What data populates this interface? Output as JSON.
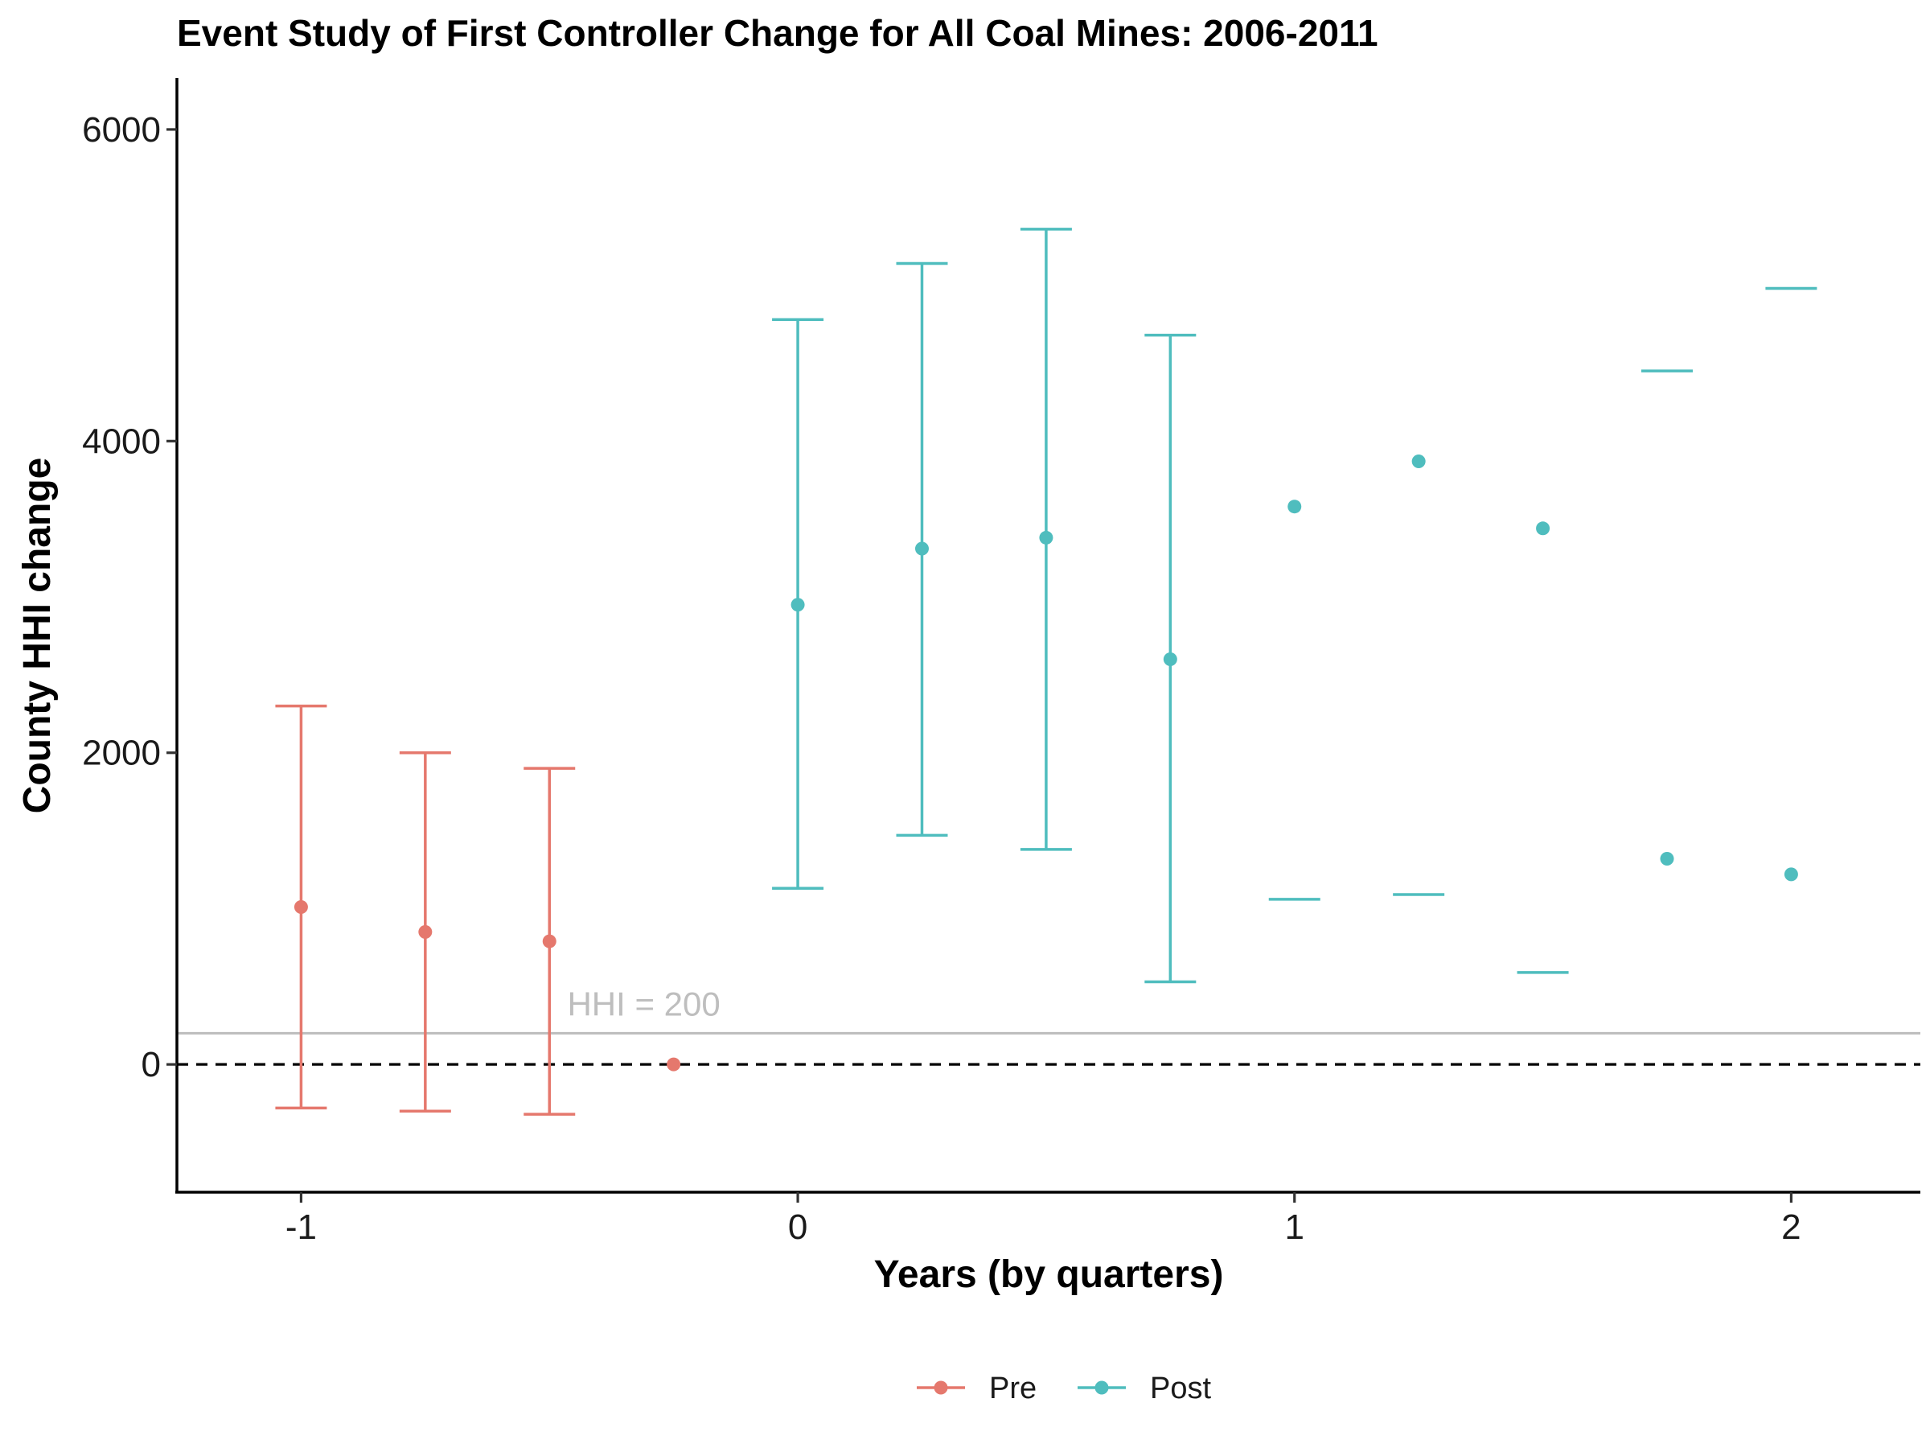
{
  "chart_data": {
    "type": "scatter",
    "title": "Event Study of First Controller Change for All Coal Mines: 2006-2011",
    "xlabel": "Years (by quarters)",
    "ylabel": "County HHI change",
    "xlim": [
      -1.25,
      2.26
    ],
    "ylim": [
      -820,
      6330
    ],
    "x_ticks": [
      -1,
      0,
      1,
      2
    ],
    "x_tick_labels": [
      "-1",
      "0",
      "1",
      "2"
    ],
    "y_ticks": [
      0,
      2000,
      4000,
      6000
    ],
    "y_tick_labels": [
      "0",
      "2000",
      "4000",
      "6000"
    ],
    "grid": false,
    "legend_position": "bottom",
    "reference_lines": [
      {
        "y": 0,
        "style": "dashed",
        "color": "#000000",
        "label": ""
      },
      {
        "y": 200,
        "style": "solid",
        "color": "#bebebe",
        "label": "HHI = 200",
        "label_x": -0.31
      }
    ],
    "series": [
      {
        "name": "Pre",
        "color": "#e5786d",
        "points": [
          {
            "x": -1.0,
            "y": 1010,
            "lower": -280,
            "upper": 2300
          },
          {
            "x": -0.75,
            "y": 850,
            "lower": -300,
            "upper": 2000
          },
          {
            "x": -0.5,
            "y": 790,
            "lower": -320,
            "upper": 1900
          },
          {
            "x": -0.25,
            "y": 0,
            "lower": null,
            "upper": null
          }
        ]
      },
      {
        "name": "Post",
        "color": "#4fbdbe",
        "points": [
          {
            "x": 0.0,
            "y": 2950,
            "lower": 1130,
            "upper": 4780
          },
          {
            "x": 0.25,
            "y": 3310,
            "lower": 1470,
            "upper": 5140
          },
          {
            "x": 0.5,
            "y": 3380,
            "lower": 1380,
            "upper": 5360
          },
          {
            "x": 0.75,
            "y": 2600,
            "lower": 530,
            "upper": 4680
          },
          {
            "x": 1.0,
            "y": 3580,
            "lower": 1060,
            "upper": null
          },
          {
            "x": 1.25,
            "y": 3870,
            "lower": 1090,
            "upper": null
          },
          {
            "x": 1.5,
            "y": 3440,
            "lower": 590,
            "upper": null
          },
          {
            "x": 1.75,
            "y": 1320,
            "lower": null,
            "upper": 4450
          },
          {
            "x": 2.0,
            "y": 1220,
            "lower": null,
            "upper": 4980
          }
        ]
      }
    ]
  }
}
